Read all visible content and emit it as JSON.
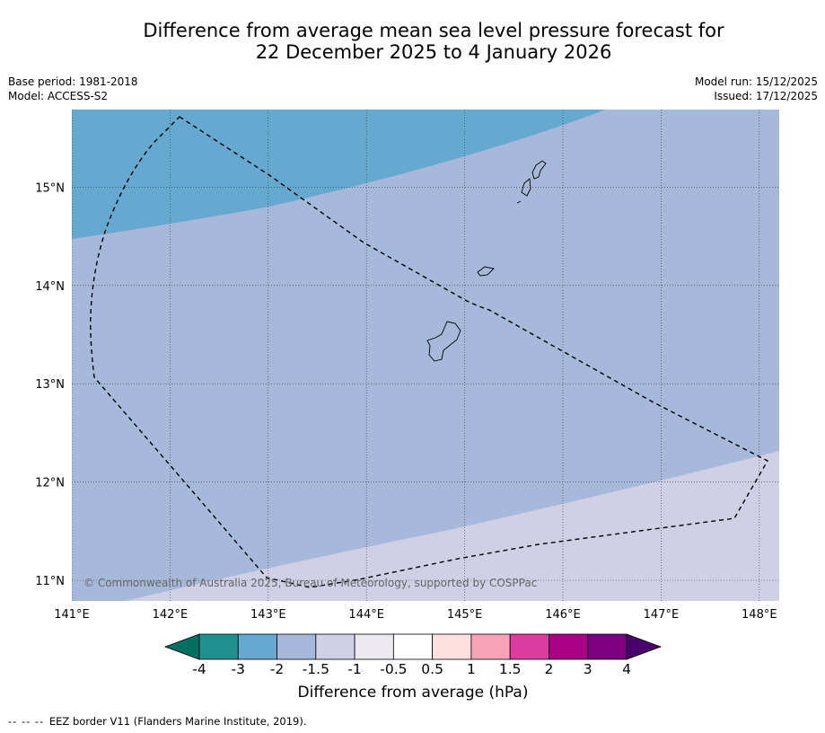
{
  "title": {
    "line1": "Difference from average mean sea level pressure forecast for",
    "line2": "22 December 2025 to 4 January 2026"
  },
  "meta": {
    "base_period": "Base period: 1981-2018",
    "model": "Model: ACCESS-S2",
    "model_run": "Model run: 15/12/2025",
    "issued": "Issued: 17/12/2025"
  },
  "map": {
    "lon_range": [
      141.0,
      148.2
    ],
    "lat_range": [
      10.8,
      15.8
    ],
    "lon_ticks": [
      141,
      142,
      143,
      144,
      145,
      146,
      147,
      148
    ],
    "lat_ticks": [
      11,
      12,
      13,
      14,
      15
    ],
    "lon_labels": [
      "141°E",
      "142°E",
      "143°E",
      "144°E",
      "145°E",
      "146°E",
      "147°E",
      "148°E"
    ],
    "lat_labels": [
      "11°N",
      "12°N",
      "13°N",
      "14°N",
      "15°N"
    ],
    "copyright": "© Commonwealth of Australia 2025, Bureau of Meteorology, supported by COSPPac"
  },
  "colorbar": {
    "colors": [
      "#006e61",
      "#1e9090",
      "#66a9d0",
      "#a6b9da",
      "#cfcfe6",
      "#ebe8ef",
      "#ffffff",
      "#ffe0e0",
      "#f8a3b9",
      "#dc3c9d",
      "#aa0286",
      "#7c0080",
      "#4a006b"
    ],
    "labels": [
      "-4",
      "-3",
      "-2",
      "-1.5",
      "-1",
      "-0.5",
      "0.5",
      "1",
      "1.5",
      "2",
      "3",
      "4"
    ],
    "title": "Difference from average (hPa)"
  },
  "footer": {
    "legend_symbol": "-- -- --",
    "legend_text": "EEZ border V11 (Flanders Marine Institute, 2019)."
  }
}
